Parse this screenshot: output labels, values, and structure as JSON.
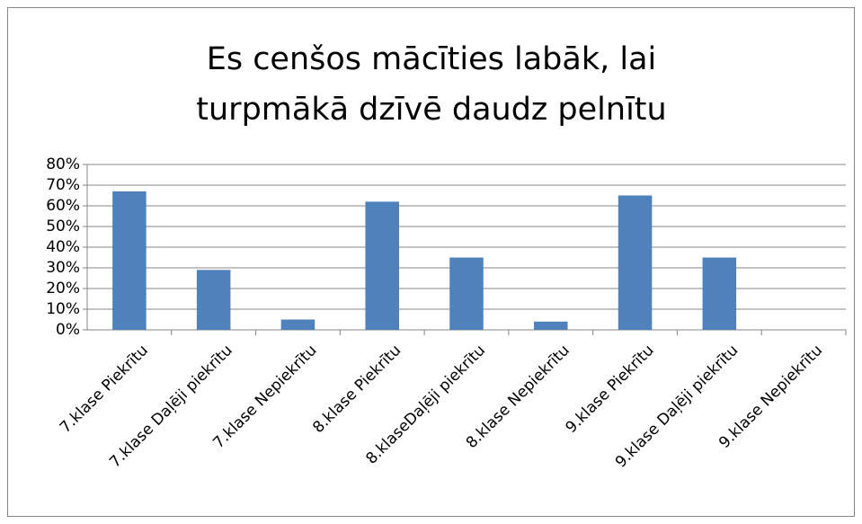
{
  "chart_data": {
    "type": "bar",
    "title": "Es cenšos mācīties labāk, lai turpmākā dzīvē daudz pelnītu",
    "categories": [
      "7.klase Piekrītu",
      "7.klase Daļēji piekrītu",
      "7.klase Nepiekrītu",
      "8.klase Piekrītu",
      "8.klaseDaļēji piekrītu",
      "8.klase Nepiekrītu",
      "9.klase Piekrītu",
      "9.klase Daļēji piekrītu",
      "9.klase Nepiekrītu"
    ],
    "values": [
      67,
      29,
      5,
      62,
      35,
      4,
      65,
      35,
      0
    ],
    "color": "#4f81bd",
    "ylim": [
      0,
      80
    ],
    "yticks": [
      {
        "value": 0,
        "label": "0%"
      },
      {
        "value": 10,
        "label": "10%"
      },
      {
        "value": 20,
        "label": "20%"
      },
      {
        "value": 30,
        "label": "30%"
      },
      {
        "value": 40,
        "label": "40%"
      },
      {
        "value": 50,
        "label": "50%"
      },
      {
        "value": 60,
        "label": "60%"
      },
      {
        "value": 70,
        "label": "70%"
      },
      {
        "value": 80,
        "label": "80%"
      }
    ],
    "grid": true
  }
}
